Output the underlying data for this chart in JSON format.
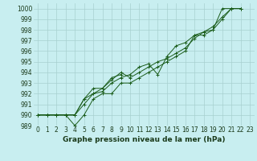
{
  "xlabel": "Graphe pression niveau de la mer (hPa)",
  "bg_color": "#c8eef0",
  "grid_color": "#a8d0d0",
  "line_color": "#1a5c1a",
  "ylim": [
    989,
    1000.5
  ],
  "xlim": [
    -0.5,
    23.5
  ],
  "yticks": [
    989,
    990,
    991,
    992,
    993,
    994,
    995,
    996,
    997,
    998,
    999,
    1000
  ],
  "xticks": [
    0,
    1,
    2,
    3,
    4,
    5,
    6,
    7,
    8,
    9,
    10,
    11,
    12,
    13,
    14,
    15,
    16,
    17,
    18,
    19,
    20,
    21,
    22,
    23
  ],
  "tick_fontsize": 5.5,
  "xlabel_fontsize": 6.5,
  "series": [
    [
      990.0,
      990.0,
      990.0,
      990.0,
      989.0,
      990.0,
      991.5,
      992.0,
      992.0,
      993.0,
      993.0,
      993.5,
      994.0,
      994.5,
      995.0,
      995.5,
      996.0,
      997.5,
      997.8,
      998.0,
      1000.0,
      1000.0,
      1000.0,
      null
    ],
    [
      990.0,
      990.0,
      990.0,
      990.0,
      990.0,
      991.0,
      992.0,
      992.5,
      993.3,
      994.0,
      993.5,
      994.0,
      994.5,
      995.0,
      995.3,
      995.8,
      996.3,
      997.2,
      997.8,
      998.3,
      999.2,
      1000.0,
      1000.0,
      null
    ],
    [
      990.0,
      990.0,
      990.0,
      990.0,
      990.0,
      991.5,
      992.0,
      992.2,
      993.0,
      993.5,
      993.8,
      994.5,
      994.8,
      993.8,
      995.5,
      996.5,
      996.8,
      997.5,
      997.5,
      998.0,
      999.0,
      1000.0,
      1000.0,
      null
    ],
    [
      990.0,
      990.0,
      990.0,
      990.0,
      990.0,
      991.5,
      992.5,
      992.5,
      993.5,
      993.8,
      null,
      null,
      null,
      null,
      null,
      null,
      null,
      null,
      null,
      null,
      null,
      null,
      null,
      null
    ]
  ]
}
